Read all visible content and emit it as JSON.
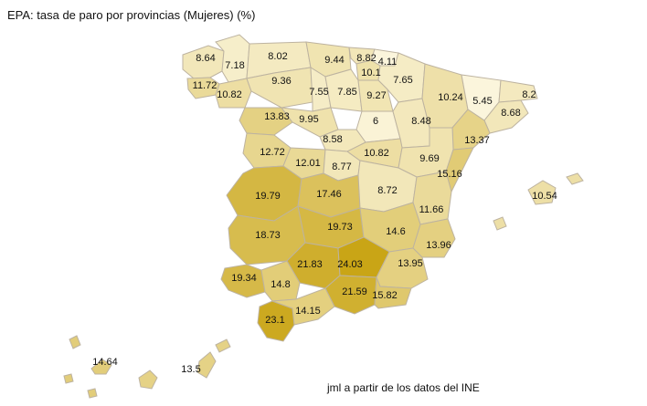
{
  "title": "EPA: tasa de paro por provincias (Mujeres) (%)",
  "credit": "jml a partir de los datos del INE",
  "colors": {
    "low": "#fbf5dc",
    "high": "#c9a516",
    "border": "#bdb3a0"
  },
  "scale": {
    "min": 5.45,
    "max": 24.03
  },
  "provinces": [
    {
      "value": 8.64,
      "label": "8.64"
    },
    {
      "value": 7.18,
      "label": "7.18"
    },
    {
      "value": 8.02,
      "label": "8.02"
    },
    {
      "value": 9.44,
      "label": "9.44"
    },
    {
      "value": 8.82,
      "label": "8.82"
    },
    {
      "value": 4.11,
      "label": "4.11"
    },
    {
      "value": 10.1,
      "label": "10.1"
    },
    {
      "value": 7.65,
      "label": "7.65"
    },
    {
      "value": 11.72,
      "label": "11.72"
    },
    {
      "value": 10.82,
      "label": "10.82"
    },
    {
      "value": 9.36,
      "label": "9.36"
    },
    {
      "value": 7.55,
      "label": "7.55"
    },
    {
      "value": 7.85,
      "label": "7.85"
    },
    {
      "value": 9.27,
      "label": "9.27"
    },
    {
      "value": 10.24,
      "label": "10.24"
    },
    {
      "value": 5.45,
      "label": "5.45"
    },
    {
      "value": 8.2,
      "label": "8.2"
    },
    {
      "value": 8.68,
      "label": "8.68"
    },
    {
      "value": 13.83,
      "label": "13.83"
    },
    {
      "value": 9.95,
      "label": "9.95"
    },
    {
      "value": 6,
      "label": "6"
    },
    {
      "value": 8.48,
      "label": "8.48"
    },
    {
      "value": 13.37,
      "label": "13.37"
    },
    {
      "value": 8.58,
      "label": "8.58"
    },
    {
      "value": 12.72,
      "label": "12.72"
    },
    {
      "value": 12.01,
      "label": "12.01"
    },
    {
      "value": 8.77,
      "label": "8.77"
    },
    {
      "value": 10.82,
      "label": "10.82"
    },
    {
      "value": 9.69,
      "label": "9.69"
    },
    {
      "value": 15.16,
      "label": "15.16"
    },
    {
      "value": 8.72,
      "label": "8.72"
    },
    {
      "value": 10.54,
      "label": "10.54"
    },
    {
      "value": 19.79,
      "label": "19.79"
    },
    {
      "value": 17.46,
      "label": "17.46"
    },
    {
      "value": 11.66,
      "label": "11.66"
    },
    {
      "value": 19.73,
      "label": "19.73"
    },
    {
      "value": 14.6,
      "label": "14.6"
    },
    {
      "value": 18.73,
      "label": "18.73"
    },
    {
      "value": 13.96,
      "label": "13.96"
    },
    {
      "value": 21.83,
      "label": "21.83"
    },
    {
      "value": 24.03,
      "label": "24.03"
    },
    {
      "value": 13.95,
      "label": "13.95"
    },
    {
      "value": 19.34,
      "label": "19.34"
    },
    {
      "value": 14.8,
      "label": "14.8"
    },
    {
      "value": 21.59,
      "label": "21.59"
    },
    {
      "value": 15.82,
      "label": "15.82"
    },
    {
      "value": 23.1,
      "label": "23.1"
    },
    {
      "value": 14.15,
      "label": "14.15"
    },
    {
      "value": 14.64,
      "label": "14.64"
    },
    {
      "value": 13.5,
      "label": "13.5"
    }
  ]
}
